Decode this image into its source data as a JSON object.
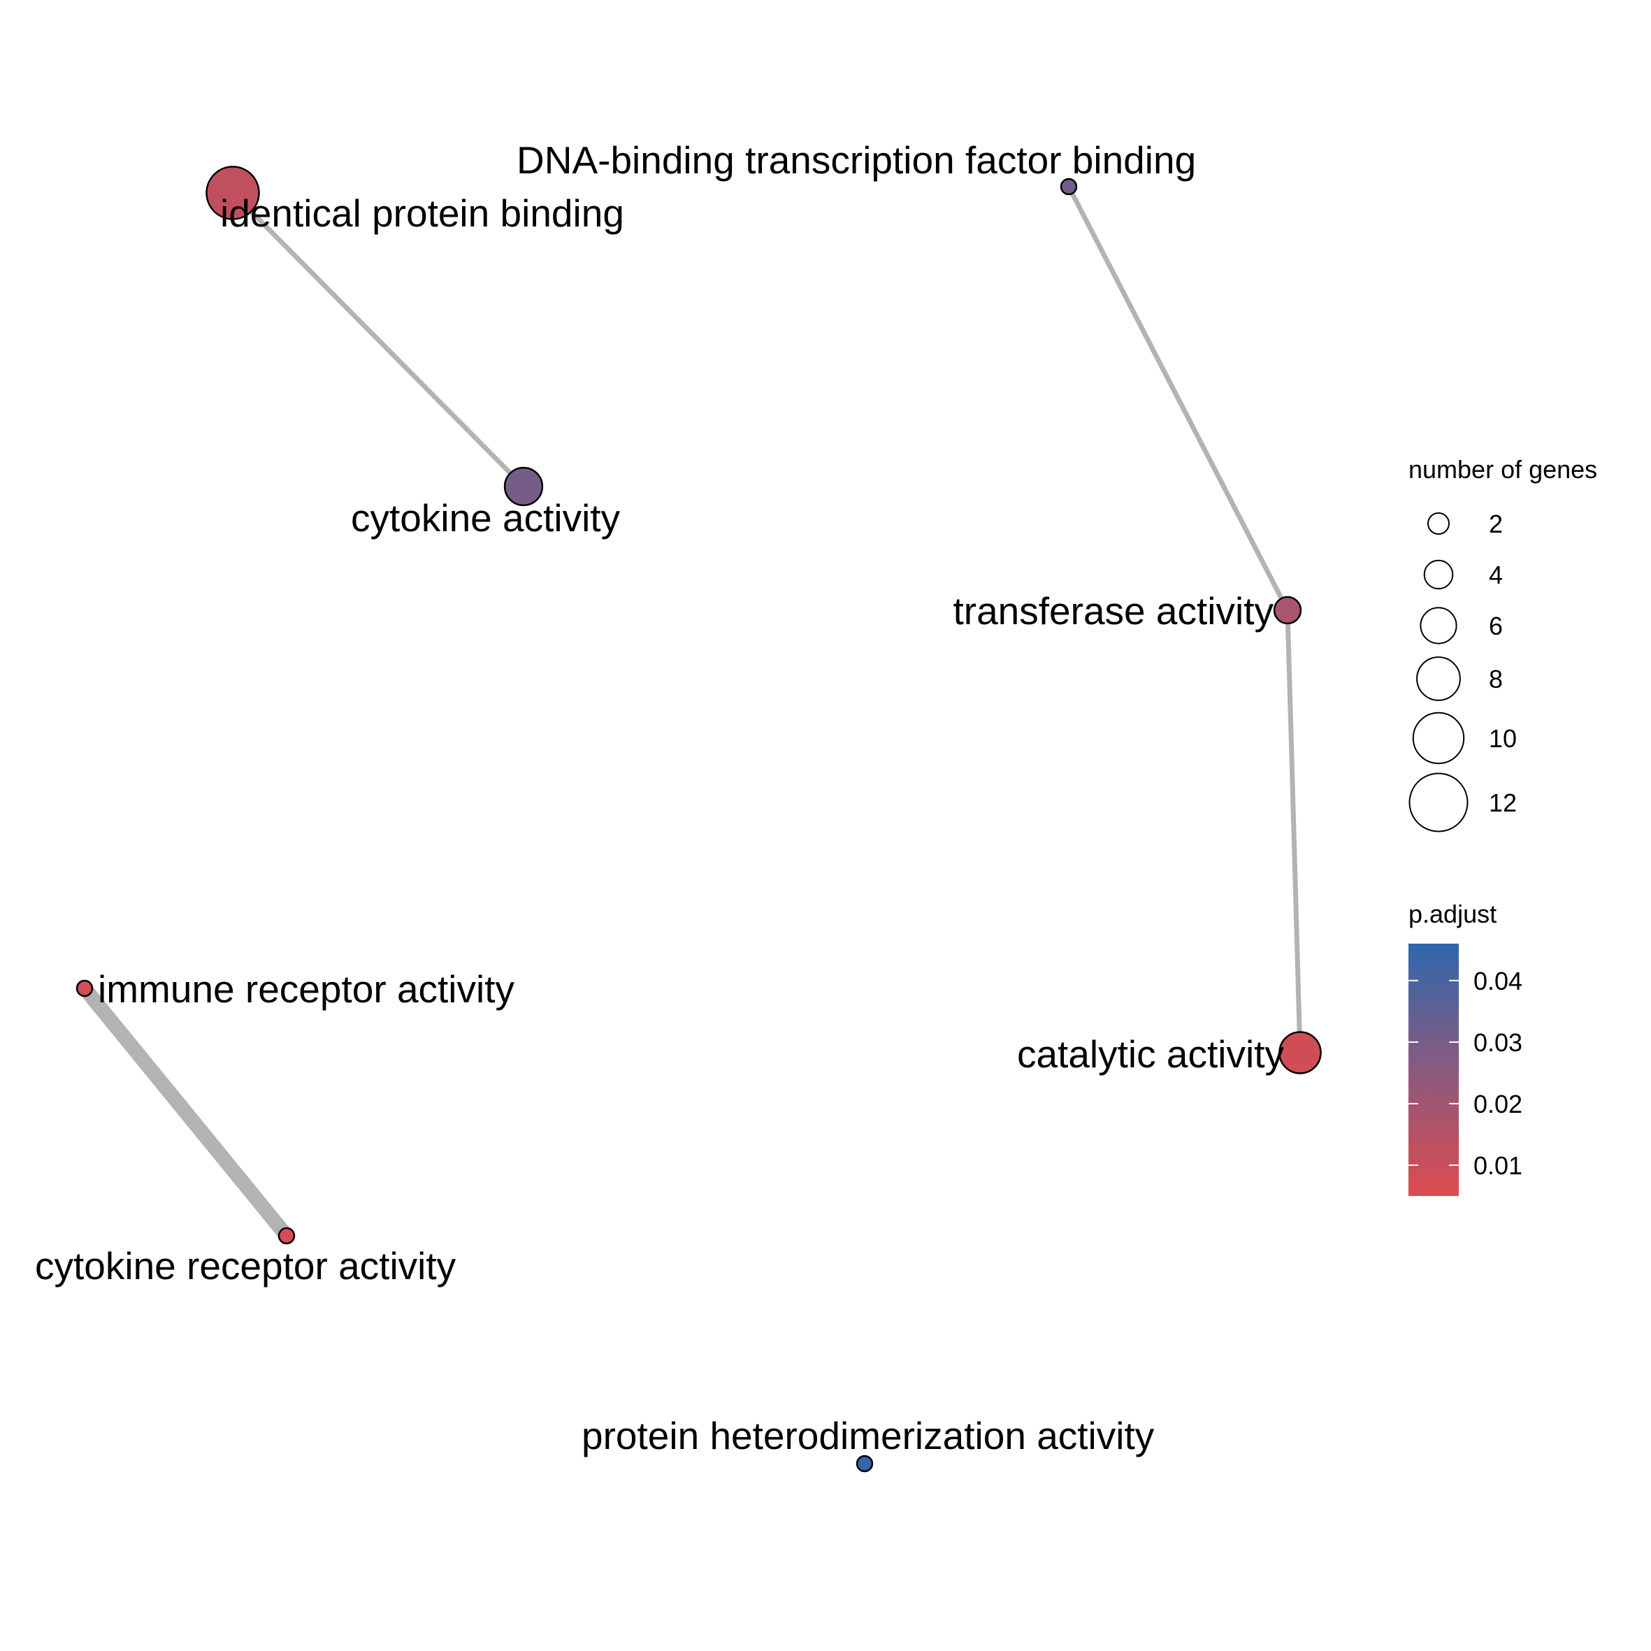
{
  "chart_data": {
    "type": "network",
    "nodes": [
      {
        "id": "identical-protein-binding",
        "label": "identical protein binding",
        "genes": 12,
        "p_adjust": 0.012
      },
      {
        "id": "cytokine-activity",
        "label": "cytokine activity",
        "genes": 8,
        "p_adjust": 0.03
      },
      {
        "id": "dna-binding-tf-binding",
        "label": "DNA-binding transcription factor binding",
        "genes": 2,
        "p_adjust": 0.031
      },
      {
        "id": "transferase-activity",
        "label": "transferase activity",
        "genes": 5,
        "p_adjust": 0.018
      },
      {
        "id": "catalytic-activity",
        "label": "catalytic activity",
        "genes": 9,
        "p_adjust": 0.008
      },
      {
        "id": "immune-receptor-activity",
        "label": "immune receptor activity",
        "genes": 2,
        "p_adjust": 0.007
      },
      {
        "id": "cytokine-receptor-activity",
        "label": "cytokine receptor activity",
        "genes": 2,
        "p_adjust": 0.007
      },
      {
        "id": "protein-heterodimerization-activity",
        "label": "protein heterodimerization activity",
        "genes": 2,
        "p_adjust": 0.045
      }
    ],
    "edges": [
      {
        "source": "identical-protein-binding",
        "target": "cytokine-activity",
        "weight": 1
      },
      {
        "source": "dna-binding-tf-binding",
        "target": "transferase-activity",
        "weight": 1
      },
      {
        "source": "transferase-activity",
        "target": "catalytic-activity",
        "weight": 1
      },
      {
        "source": "immune-receptor-activity",
        "target": "cytokine-receptor-activity",
        "weight": 3
      }
    ],
    "legend_size": {
      "title": "number of genes",
      "breaks": [
        2,
        4,
        6,
        8,
        10,
        12
      ],
      "labels": [
        "2",
        "4",
        "6",
        "8",
        "10",
        "12"
      ]
    },
    "legend_color": {
      "title": "p.adjust",
      "min": 0.005,
      "max": 0.046,
      "low_color": "#dd4b4f",
      "high_color": "#2f67ad",
      "breaks": [
        0.01,
        0.02,
        0.03,
        0.04
      ],
      "labels": [
        "0.01",
        "0.02",
        "0.03",
        "0.04"
      ]
    },
    "colors": {
      "edge": "#b3b3b3",
      "node_stroke": "#000000"
    }
  }
}
